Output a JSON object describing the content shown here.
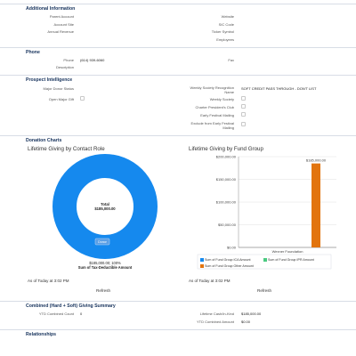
{
  "additional_info": {
    "title": "Additional Information",
    "left_fields": [
      {
        "label": "Parent Account",
        "value": ""
      },
      {
        "label": "Account Site",
        "value": ""
      },
      {
        "label": "Annual Revenue",
        "value": ""
      }
    ],
    "right_fields": [
      {
        "label": "Website",
        "value": ""
      },
      {
        "label": "SIC Code",
        "value": ""
      },
      {
        "label": "Ticker Symbol",
        "value": ""
      },
      {
        "label": "Employees",
        "value": ""
      }
    ]
  },
  "phone": {
    "title": "Phone",
    "phone_label": "Phone",
    "phone_value": "(614) 939-6060",
    "fax_label": "Fax",
    "description_label": "Description"
  },
  "prospect": {
    "title": "Prospect Intelligence",
    "major_donor_label": "Major Donor Status",
    "open_major_gift_label": "Open Major Gift",
    "weekly_society_recognition_label_1": "Weekly Society Recognition",
    "weekly_society_recognition_label_2": "Name",
    "weekly_society_recognition_value": "SOFT CREDIT PASS THROUGH - DON'T LIST",
    "weekly_society_label": "Weekly Society",
    "charter_presidents_club_label": "Charter President's Club",
    "early_festival_mailing_label": "Early Festival Mailing",
    "exclude_early_label_1": "Exclude from Early Festival",
    "exclude_early_label_2": "Mailing"
  },
  "donation_charts": {
    "title": "Donation Charts",
    "as_of": "As of Today at 3:02 PM",
    "refresh_label": "Refresh"
  },
  "chart_data": [
    {
      "type": "pie",
      "title": "Lifetime Giving by Contact Role",
      "center_label_1": "Total",
      "center_label_2": "$185,000.00",
      "categories": [
        "Donor"
      ],
      "values": [
        185000
      ],
      "slice_label": "$185,000.00; 100%",
      "measure_label": "Sum of Tax-Deductible Amount",
      "color": "#1589ee"
    },
    {
      "type": "bar",
      "title": "Lifetime Giving by Fund Group",
      "categories": [
        "Wexner Foundation"
      ],
      "series": [
        {
          "name": "Sum of Fund Group ICA Amount",
          "values": [
            0
          ],
          "color": "#1589ee"
        },
        {
          "name": "Sum of Fund Group IPR Amount",
          "values": [
            0
          ],
          "color": "#4bca81"
        },
        {
          "name": "Sum of Fund Group Other Amount",
          "values": [
            185000
          ],
          "color": "#e2740e"
        }
      ],
      "data_label": "$185,000.00",
      "ylim": [
        0,
        200000
      ],
      "yticks": [
        "$0.00",
        "$50,000.00",
        "$100,000.00",
        "$150,000.00",
        "$200,000.00"
      ],
      "ytick_values": [
        0,
        50000,
        100000,
        150000,
        200000
      ]
    }
  ],
  "giving_summary": {
    "title": "Combined (Hard + Soft) Giving Summary",
    "ytd_count_label": "YTD Combined Count",
    "ytd_count_value": "0",
    "lifetime_cash_label": "Lifetime Cash/In-Kind",
    "lifetime_cash_value": "$185,000.00",
    "ytd_amount_label": "YTD Combined Amount",
    "ytd_amount_value": "$0.00"
  },
  "relationships": {
    "title": "Relationships"
  }
}
